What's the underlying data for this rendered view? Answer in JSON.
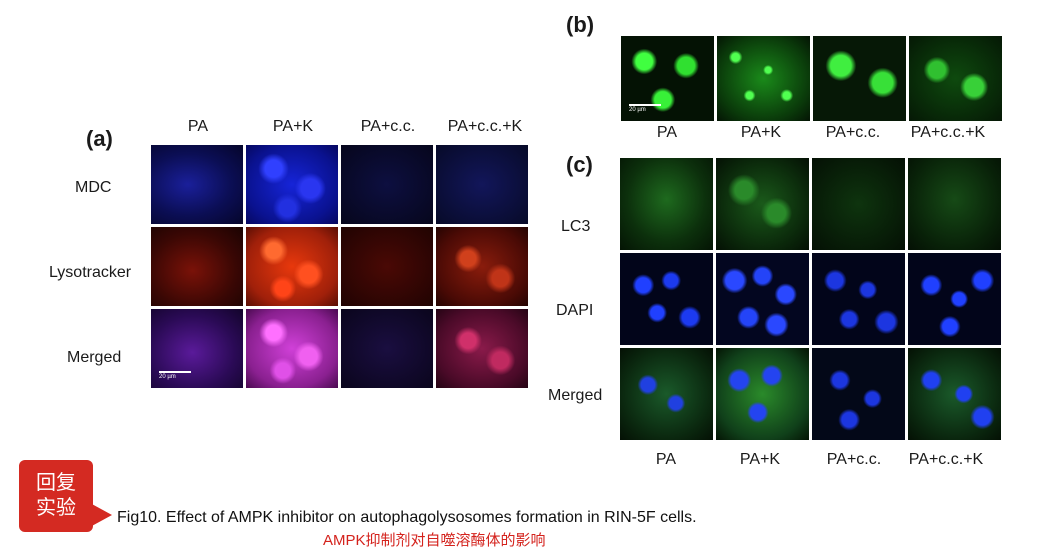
{
  "panel_a": {
    "letter": "(a)",
    "columns": [
      "PA",
      "PA+K",
      "PA+c.c.",
      "PA+c.c.+K"
    ],
    "rows": [
      "MDC",
      "Lysotracker",
      "Merged"
    ],
    "scale_bar": "20 µm",
    "colors": {
      "mdc": "#1f2cff",
      "lysotracker": "#ff3010",
      "merged": "#e040e0"
    }
  },
  "panel_b": {
    "letter": "(b)",
    "columns": [
      "PA",
      "PA+K",
      "PA+c.c.",
      "PA+c.c.+K"
    ],
    "scale_bar": "20 µm",
    "color": "#28e028"
  },
  "panel_c": {
    "letter": "(c)",
    "columns": [
      "PA",
      "PA+K",
      "PA+c.c.",
      "PA+c.c.+K"
    ],
    "rows": [
      "LC3",
      "DAPI",
      "Merged"
    ],
    "colors": {
      "lc3": "#2bb82b",
      "dapi": "#1a3cff"
    }
  },
  "badge": {
    "text": "回复实验",
    "color": "#d42a22"
  },
  "caption": "Fig10. Effect of AMPK inhibitor on autophagolysosomes formation in RIN-5F cells.",
  "caption_cn": "AMPK抑制剂对自噬溶酶体的影响"
}
